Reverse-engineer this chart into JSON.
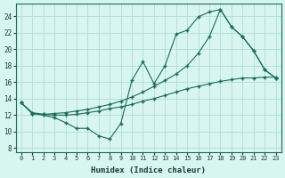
{
  "xlabel": "Humidex (Indice chaleur)",
  "background_color": "#d8f5f0",
  "grid_color": "#b0ddd8",
  "line_color": "#1a6b5a",
  "xlim": [
    -0.5,
    23.5
  ],
  "ylim": [
    7.5,
    25.5
  ],
  "xticks": [
    0,
    1,
    2,
    3,
    4,
    5,
    6,
    7,
    8,
    9,
    10,
    11,
    12,
    13,
    14,
    15,
    16,
    17,
    18,
    19,
    20,
    21,
    22,
    23
  ],
  "yticks": [
    8,
    10,
    12,
    14,
    16,
    18,
    20,
    22,
    24
  ],
  "line1_x": [
    0,
    1,
    2,
    3,
    4,
    5,
    6,
    7,
    8,
    9,
    10,
    11,
    12,
    13,
    14,
    15,
    16,
    17,
    18,
    19,
    20,
    21,
    22,
    23
  ],
  "line1_y": [
    13.5,
    12.2,
    12.0,
    11.7,
    11.1,
    10.4,
    10.4,
    9.5,
    9.1,
    11.0,
    16.2,
    18.5,
    15.8,
    18.0,
    21.8,
    22.3,
    23.9,
    24.5,
    24.8,
    22.7,
    21.5,
    19.8,
    17.5,
    16.5
  ],
  "line2_x": [
    0,
    1,
    2,
    3,
    4,
    5,
    6,
    7,
    8,
    9,
    10,
    11,
    12,
    13,
    14,
    15,
    16,
    17,
    18,
    19,
    20,
    21,
    22,
    23
  ],
  "line2_y": [
    13.5,
    12.2,
    12.1,
    12.2,
    12.3,
    12.5,
    12.7,
    13.0,
    13.3,
    13.7,
    14.2,
    14.8,
    15.5,
    16.2,
    17.0,
    18.0,
    19.5,
    21.5,
    24.8,
    22.7,
    21.5,
    19.8,
    17.5,
    16.5
  ],
  "line3_x": [
    0,
    1,
    2,
    3,
    4,
    5,
    6,
    7,
    8,
    9,
    10,
    11,
    12,
    13,
    14,
    15,
    16,
    17,
    18,
    19,
    20,
    21,
    22,
    23
  ],
  "line3_y": [
    13.5,
    12.3,
    12.1,
    12.0,
    12.0,
    12.1,
    12.3,
    12.5,
    12.8,
    13.0,
    13.3,
    13.7,
    14.0,
    14.4,
    14.8,
    15.2,
    15.5,
    15.8,
    16.1,
    16.3,
    16.5,
    16.5,
    16.6,
    16.6
  ]
}
